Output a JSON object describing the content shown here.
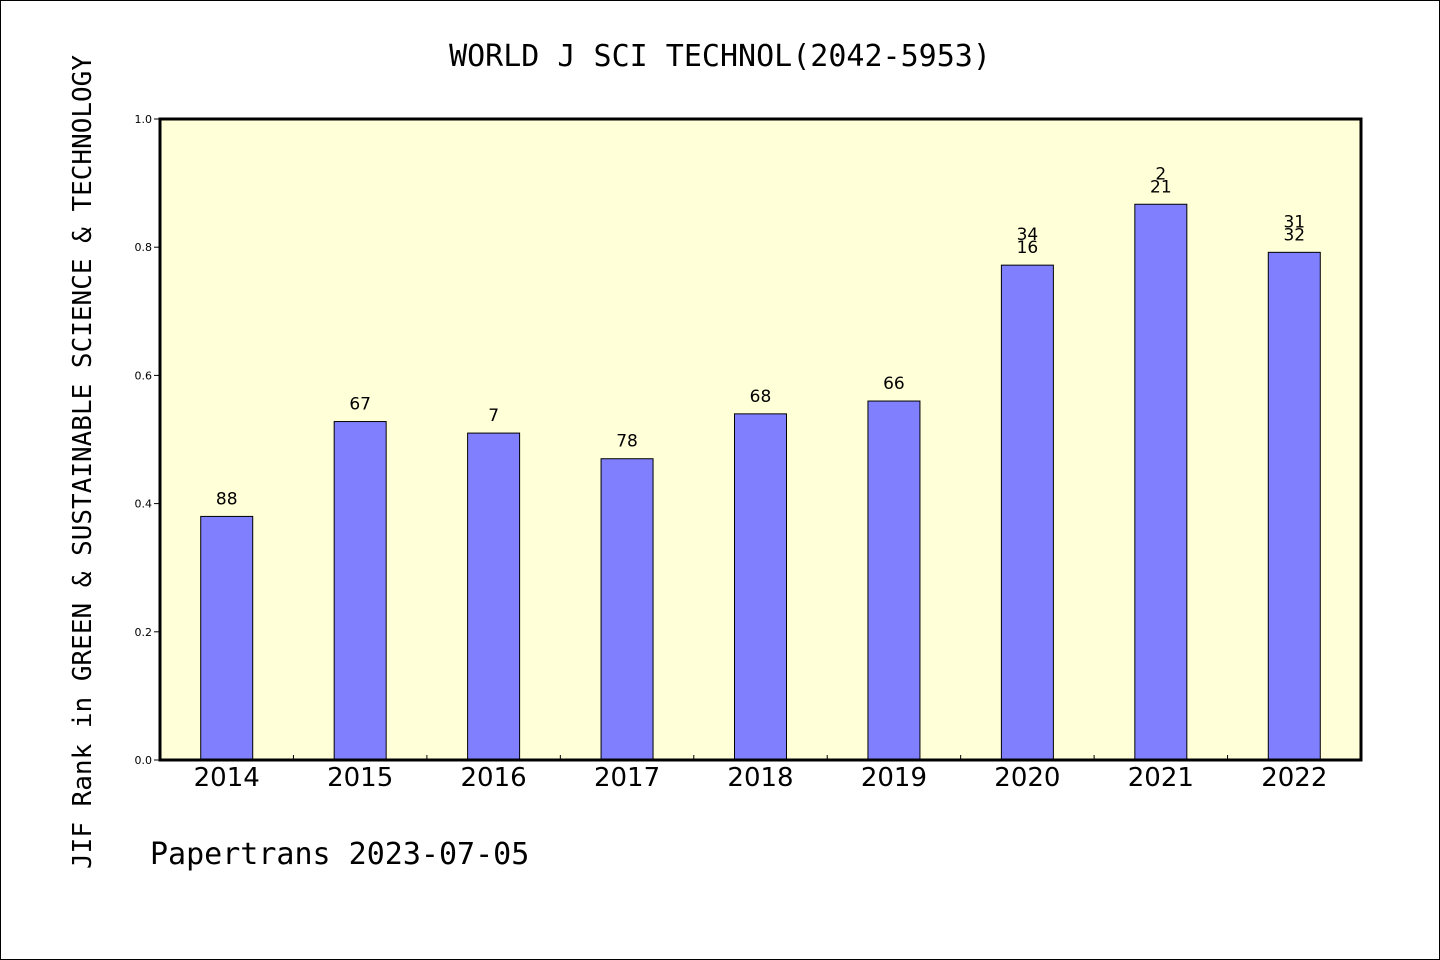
{
  "chart_data": {
    "type": "bar",
    "title": "WORLD J SCI TECHNOL(2042-5953)",
    "ylabel": "JIF Rank in GREEN & SUSTAINABLE SCIENCE & TECHNOLOGY",
    "xlabel": "",
    "footer": "Papertrans 2023-07-05",
    "ylim": [
      0,
      1.0
    ],
    "yticks": [
      "0.0",
      "0.2",
      "0.4",
      "0.6",
      "0.8",
      "1.0"
    ],
    "categories": [
      "2014",
      "2015",
      "2016",
      "2017",
      "2018",
      "2019",
      "2020",
      "2021",
      "2022"
    ],
    "values": [
      0.38,
      0.528,
      0.51,
      0.47,
      0.54,
      0.56,
      0.772,
      0.867,
      0.792
    ],
    "labels": [
      [
        "88"
      ],
      [
        "67"
      ],
      [
        "7"
      ],
      [
        "78"
      ],
      [
        "68"
      ],
      [
        "66"
      ],
      [
        "34",
        "16"
      ],
      [
        "2",
        "21"
      ],
      [
        "31",
        "32"
      ]
    ],
    "grid": false,
    "colors": {
      "bar": "#8080ff",
      "plot_background": "#ffffd8",
      "axis": "#000000"
    }
  }
}
